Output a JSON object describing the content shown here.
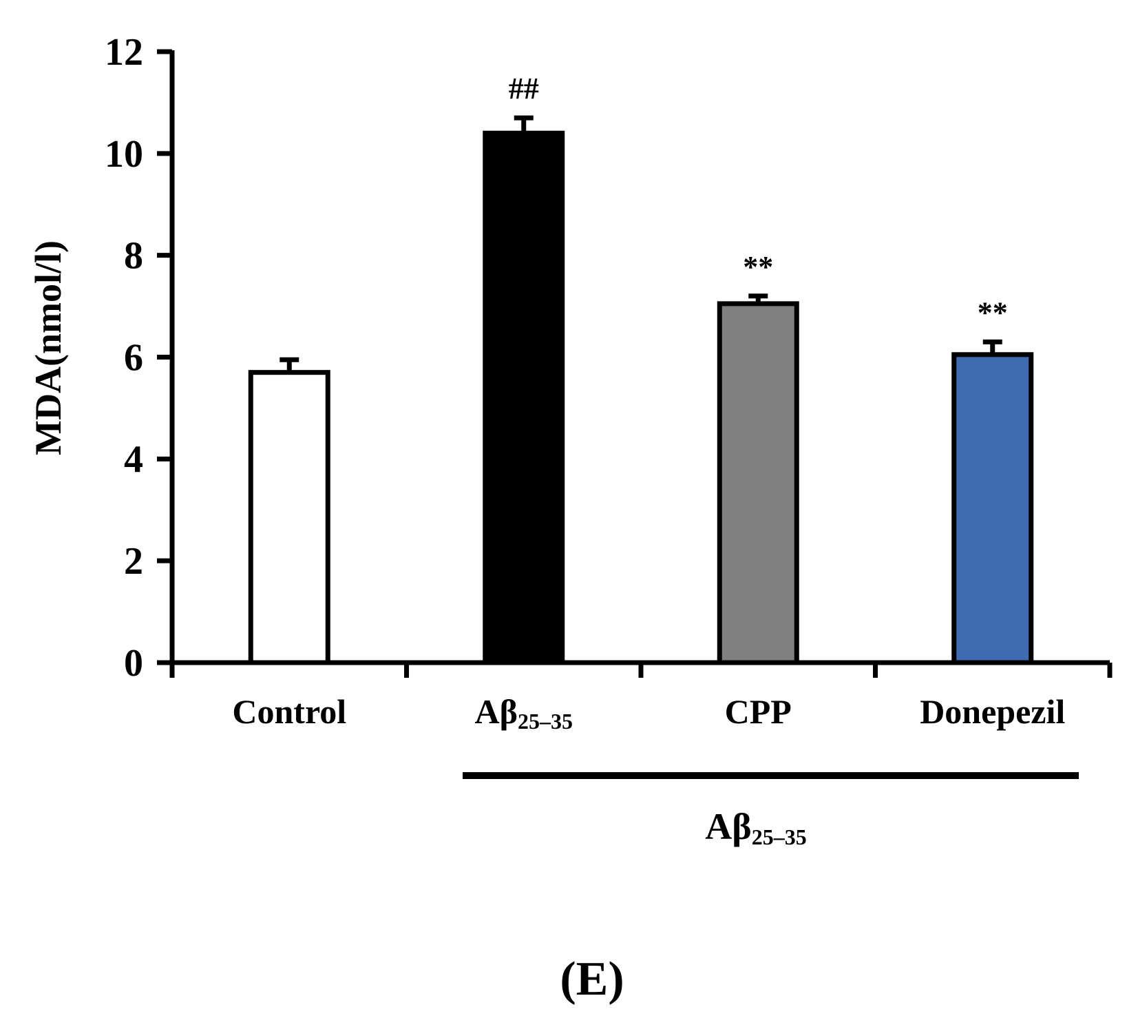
{
  "chart_data": {
    "type": "bar",
    "ylabel": "MDA(nmol/l)",
    "ylim": [
      0,
      12
    ],
    "yticks": [
      "0",
      "2",
      "4",
      "6",
      "8",
      "10",
      "12"
    ],
    "categories": [
      {
        "name": "Control",
        "main": "Control",
        "sub": ""
      },
      {
        "name": "Aβ25–35",
        "main": "Aβ",
        "sub": "25–35"
      },
      {
        "name": "CPP",
        "main": "CPP",
        "sub": ""
      },
      {
        "name": "Donepezil",
        "main": "Donepezil",
        "sub": ""
      }
    ],
    "values": [
      5.7,
      10.4,
      7.05,
      6.05
    ],
    "errors": [
      0.25,
      0.3,
      0.15,
      0.25
    ],
    "significance": [
      "",
      "##",
      "**",
      "**"
    ],
    "colors": [
      "#ffffff",
      "#000000",
      "#808080",
      "#3f6bb0"
    ],
    "group_label": {
      "main": "Aβ",
      "sub": "25–35"
    },
    "panel_label": "(E)"
  }
}
